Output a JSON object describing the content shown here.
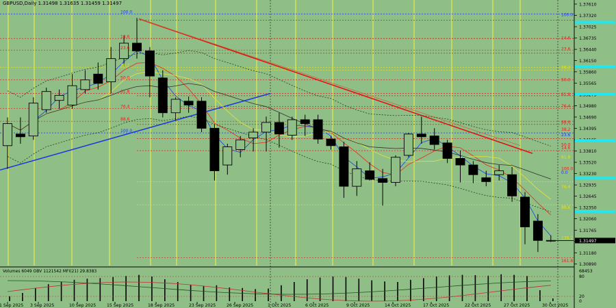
{
  "header": {
    "symbol_info": "GBPUSD,Daily  1.31498 1.31635 1.31459 1.31497"
  },
  "indicator_header": "Volumes 6049  OBV 1121542  MFI(21) 29.8383",
  "price_axis": {
    "labels": [
      "1.37610",
      "1.37320",
      "1.37025",
      "1.36735",
      "1.36440",
      "1.36150",
      "1.35860",
      "1.35565",
      "1.35275",
      "1.34980",
      "1.34690",
      "1.34395",
      "1.34105",
      "1.33810",
      "1.33520",
      "1.33230",
      "1.32935",
      "1.32645",
      "1.32350",
      "1.32060",
      "1.31765",
      "1.31475",
      "1.31180",
      "1.30890"
    ],
    "current": "1.31497"
  },
  "indicator_axis": {
    "labels": [
      "68453",
      "80",
      "20",
      "0"
    ]
  },
  "date_axis": [
    "1 Sep 2025",
    "3 Sep 2025",
    "10 Sep 2025",
    "15 Sep 2025",
    "18 Sep 2025",
    "23 Sep 2025",
    "26 Sep 2025",
    "1 Oct 2025",
    "6 Oct 2025",
    "9 Oct 2025",
    "14 Oct 2025",
    "17 Oct 2025",
    "22 Oct 2025",
    "27 Oct 2025",
    "30 Oct 2025"
  ],
  "fib_left": [
    {
      "label": "100.0",
      "price": 1.3735,
      "color": "#1a3adb"
    },
    {
      "label": "14.6",
      "price": 1.3672,
      "color": "#e02020"
    },
    {
      "label": "23.6",
      "price": 1.3642,
      "color": "#e02020"
    },
    {
      "label": "38.2",
      "price": 1.3597,
      "color": "#e0e020"
    },
    {
      "label": "50.0",
      "price": 1.3565,
      "color": "#e02020"
    },
    {
      "label": "61.8",
      "price": 1.353,
      "color": "#e02020"
    },
    {
      "label": "76.4",
      "price": 1.3491,
      "color": "#e02020"
    },
    {
      "label": "88.6",
      "price": 1.3458,
      "color": "#e02020"
    },
    {
      "label": "100.0",
      "price": 1.3428,
      "color": "#1a3adb"
    }
  ],
  "fib_right": [
    {
      "label": "0.0",
      "price": 1.3719,
      "color": "#1a3adb"
    },
    {
      "label": "14.6",
      "price": 1.3672,
      "color": "#e02020"
    },
    {
      "label": "23.6",
      "price": 1.3634,
      "color": "#e02020"
    },
    {
      "label": "38.2",
      "price": 1.359,
      "color": "#e0e020"
    },
    {
      "label": "50.0",
      "price": 1.3524,
      "color": "#e02020"
    },
    {
      "label": "61.8",
      "price": 1.3496,
      "color": "#e02020"
    },
    {
      "label": "76.4",
      "price": 1.345,
      "color": "#e02020"
    },
    {
      "label": "88.6",
      "price": 1.3413,
      "color": "#e02020"
    },
    {
      "label": "100.0",
      "price": 1.3382,
      "color": "#e02020"
    },
    {
      "label": "76.4",
      "price": 1.3302,
      "color": "#e0e020"
    },
    {
      "label": "138.2",
      "price": 1.3242,
      "color": "#e0e020"
    },
    {
      "label": "161.8",
      "price": 1.3105,
      "color": "#e02020"
    }
  ],
  "fib_axis_labels": [
    {
      "label": "100.0",
      "price": 1.3728,
      "color": "#1a3adb"
    },
    {
      "label": "14.6",
      "price": 1.3668,
      "color": "#e02020"
    },
    {
      "label": "23.6",
      "price": 1.364,
      "color": "#e02020"
    },
    {
      "label": "38.2",
      "price": 1.3592,
      "color": "#e0e020"
    },
    {
      "label": "50.0",
      "price": 1.356,
      "color": "#e02020"
    },
    {
      "label": "61.8",
      "price": 1.3522,
      "color": "#e02020"
    },
    {
      "label": "76.4",
      "price": 1.3492,
      "color": "#e02020"
    },
    {
      "label": "88.6",
      "price": 1.345,
      "color": "#e02020"
    },
    {
      "label": "23.6",
      "price": 1.3418,
      "color": "#1a3adb"
    },
    {
      "label": "38.2",
      "price": 1.3432,
      "color": "#e02020"
    },
    {
      "label": "50.0",
      "price": 1.3392,
      "color": "#e02020"
    },
    {
      "label": "14.6",
      "price": 1.3384,
      "color": "#e02020"
    },
    {
      "label": "61.8",
      "price": 1.336,
      "color": "#e0e020"
    },
    {
      "label": "100.0",
      "price": 1.333,
      "color": "#e02020"
    },
    {
      "label": "0.0",
      "price": 1.332,
      "color": "#1a3adb"
    },
    {
      "label": "76.4",
      "price": 1.3283,
      "color": "#e0e020"
    },
    {
      "label": "88.6",
      "price": 1.323,
      "color": "#e0e020"
    },
    {
      "label": "138.2",
      "price": 1.3151,
      "color": "#e0e020"
    },
    {
      "label": "161.8",
      "price": 1.3092,
      "color": "#e02020"
    }
  ],
  "highlight_prices": [
    1.3714,
    1.36,
    1.3529,
    1.3408,
    1.3311,
    1.3225,
    1.3153
  ],
  "chart_data": {
    "type": "candlestick",
    "symbol": "GBPUSD",
    "timeframe": "Daily",
    "ylim": [
      1.3085,
      1.3768
    ],
    "candles": [
      {
        "o": 1.3395,
        "h": 1.3468,
        "l": 1.3335,
        "c": 1.3452
      },
      {
        "o": 1.3425,
        "h": 1.3468,
        "l": 1.34,
        "c": 1.3418
      },
      {
        "o": 1.342,
        "h": 1.352,
        "l": 1.341,
        "c": 1.3505
      },
      {
        "o": 1.3488,
        "h": 1.3545,
        "l": 1.348,
        "c": 1.3535
      },
      {
        "o": 1.3512,
        "h": 1.354,
        "l": 1.349,
        "c": 1.3525
      },
      {
        "o": 1.35,
        "h": 1.358,
        "l": 1.349,
        "c": 1.355
      },
      {
        "o": 1.354,
        "h": 1.359,
        "l": 1.353,
        "c": 1.3565
      },
      {
        "o": 1.358,
        "h": 1.361,
        "l": 1.354,
        "c": 1.3556
      },
      {
        "o": 1.356,
        "h": 1.365,
        "l": 1.353,
        "c": 1.362
      },
      {
        "o": 1.362,
        "h": 1.368,
        "l": 1.36,
        "c": 1.366
      },
      {
        "o": 1.366,
        "h": 1.3725,
        "l": 1.362,
        "c": 1.364
      },
      {
        "o": 1.364,
        "h": 1.365,
        "l": 1.352,
        "c": 1.3575
      },
      {
        "o": 1.357,
        "h": 1.359,
        "l": 1.3468,
        "c": 1.348
      },
      {
        "o": 1.348,
        "h": 1.352,
        "l": 1.346,
        "c": 1.3515
      },
      {
        "o": 1.351,
        "h": 1.3522,
        "l": 1.348,
        "c": 1.35
      },
      {
        "o": 1.351,
        "h": 1.352,
        "l": 1.343,
        "c": 1.344
      },
      {
        "o": 1.344,
        "h": 1.345,
        "l": 1.3305,
        "c": 1.333
      },
      {
        "o": 1.3345,
        "h": 1.34,
        "l": 1.332,
        "c": 1.3392
      },
      {
        "o": 1.3385,
        "h": 1.342,
        "l": 1.3365,
        "c": 1.341
      },
      {
        "o": 1.3415,
        "h": 1.344,
        "l": 1.338,
        "c": 1.343
      },
      {
        "o": 1.343,
        "h": 1.347,
        "l": 1.338,
        "c": 1.3455
      },
      {
        "o": 1.3455,
        "h": 1.348,
        "l": 1.339,
        "c": 1.3425
      },
      {
        "o": 1.3422,
        "h": 1.347,
        "l": 1.341,
        "c": 1.3462
      },
      {
        "o": 1.3462,
        "h": 1.3475,
        "l": 1.342,
        "c": 1.3452
      },
      {
        "o": 1.3462,
        "h": 1.3475,
        "l": 1.34,
        "c": 1.3412
      },
      {
        "o": 1.3412,
        "h": 1.342,
        "l": 1.3385,
        "c": 1.3395
      },
      {
        "o": 1.3392,
        "h": 1.3405,
        "l": 1.326,
        "c": 1.329
      },
      {
        "o": 1.329,
        "h": 1.3355,
        "l": 1.3265,
        "c": 1.3335
      },
      {
        "o": 1.333,
        "h": 1.3352,
        "l": 1.3305,
        "c": 1.3308
      },
      {
        "o": 1.331,
        "h": 1.3335,
        "l": 1.324,
        "c": 1.33
      },
      {
        "o": 1.33,
        "h": 1.337,
        "l": 1.329,
        "c": 1.3365
      },
      {
        "o": 1.337,
        "h": 1.3428,
        "l": 1.3365,
        "c": 1.3425
      },
      {
        "o": 1.3425,
        "h": 1.347,
        "l": 1.34,
        "c": 1.3418
      },
      {
        "o": 1.342,
        "h": 1.344,
        "l": 1.3385,
        "c": 1.3398
      },
      {
        "o": 1.3402,
        "h": 1.341,
        "l": 1.335,
        "c": 1.3362
      },
      {
        "o": 1.3362,
        "h": 1.3382,
        "l": 1.33,
        "c": 1.3345
      },
      {
        "o": 1.3345,
        "h": 1.3355,
        "l": 1.3298,
        "c": 1.332
      },
      {
        "o": 1.3312,
        "h": 1.333,
        "l": 1.329,
        "c": 1.3302
      },
      {
        "o": 1.332,
        "h": 1.3345,
        "l": 1.3305,
        "c": 1.333
      },
      {
        "o": 1.332,
        "h": 1.334,
        "l": 1.325,
        "c": 1.3265
      },
      {
        "o": 1.3262,
        "h": 1.3275,
        "l": 1.314,
        "c": 1.3185
      },
      {
        "o": 1.32,
        "h": 1.3218,
        "l": 1.312,
        "c": 1.315
      },
      {
        "o": 1.315,
        "h": 1.3163,
        "l": 1.3146,
        "c": 1.315
      }
    ],
    "volumes_pct": [
      18,
      30,
      48,
      62,
      70,
      78,
      82,
      84,
      88,
      92,
      96,
      90,
      80,
      70,
      60,
      55,
      58,
      50,
      48,
      44,
      46,
      58,
      70,
      80,
      86,
      90,
      88,
      82,
      76,
      72,
      70,
      78,
      84,
      90,
      94,
      96,
      95,
      93,
      98,
      96,
      92,
      40,
      10
    ]
  }
}
